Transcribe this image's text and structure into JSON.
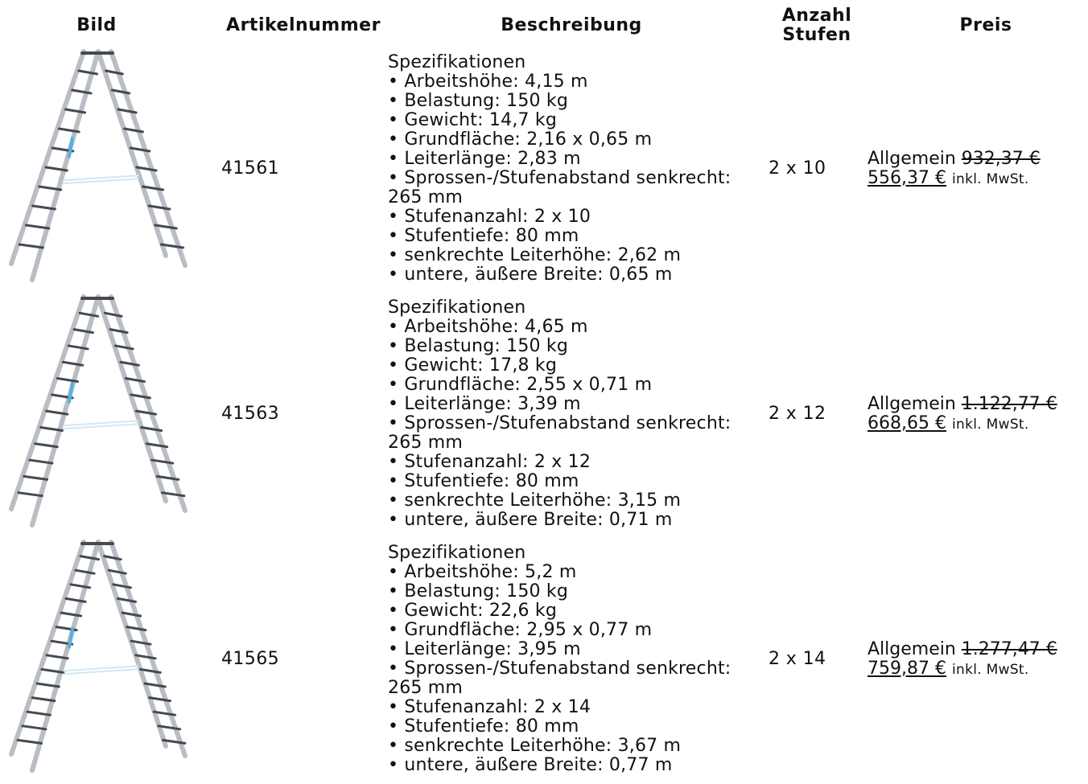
{
  "headers": {
    "bild": "Bild",
    "artikelnummer": "Artikelnummer",
    "beschreibung": "Beschreibung",
    "anzahl_line1": "Anzahl",
    "anzahl_line2": "Stufen",
    "preis": "Preis"
  },
  "rows": [
    {
      "image": "ladder-image",
      "article_number": "41561",
      "spec_title": "Spezifikationen",
      "specs": [
        "Arbeitshöhe: 4,15 m",
        "Belastung: 150 kg",
        "Gewicht: 14,7 kg",
        "Grundfläche: 2,16 x 0,65 m",
        "Leiterlänge: 2,83 m",
        "Sprossen-/Stufenabstand senkrecht: 265 mm",
        "Stufenanzahl: 2 x 10",
        "Stufentiefe: 80 mm",
        "senkrechte Leiterhöhe: 2,62 m",
        "untere, äußere Breite: 0,65 m"
      ],
      "steps": "2 x 10",
      "price_label": "Allgemein",
      "old_price": "932,37 €",
      "new_price": "556,37 €",
      "vat_note": "inkl. MwSt."
    },
    {
      "image": "ladder-image",
      "article_number": "41563",
      "spec_title": "Spezifikationen",
      "specs": [
        "Arbeitshöhe: 4,65 m",
        "Belastung: 150 kg",
        "Gewicht: 17,8 kg",
        "Grundfläche: 2,55 x 0,71 m",
        "Leiterlänge: 3,39 m",
        "Sprossen-/Stufenabstand senkrecht: 265 mm",
        "Stufenanzahl: 2 x 12",
        "Stufentiefe: 80 mm",
        "senkrechte Leiterhöhe: 3,15 m",
        "untere, äußere Breite: 0,71 m"
      ],
      "steps": "2 x 12",
      "price_label": "Allgemein",
      "old_price": "1.122,77 €",
      "new_price": "668,65 €",
      "vat_note": "inkl. MwSt."
    },
    {
      "image": "ladder-image",
      "article_number": "41565",
      "spec_title": "Spezifikationen",
      "specs": [
        "Arbeitshöhe: 5,2 m",
        "Belastung: 150 kg",
        "Gewicht: 22,6 kg",
        "Grundfläche: 2,95 x 0,77 m",
        "Leiterlänge: 3,95 m",
        "Sprossen-/Stufenabstand senkrecht: 265 mm",
        "Stufenanzahl: 2 x 14",
        "Stufentiefe: 80 mm",
        "senkrechte Leiterhöhe: 3,67 m",
        "untere, äußere Breite: 0,77 m"
      ],
      "steps": "2 x 14",
      "price_label": "Allgemein",
      "old_price": "1.277,47 €",
      "new_price": "759,87 €",
      "vat_note": "inkl. MwSt."
    }
  ],
  "colors": {
    "text": "#111111",
    "ladder_rail": "#b8bec4",
    "ladder_rung": "#444a50",
    "ladder_accent": "#4fb3e8"
  }
}
